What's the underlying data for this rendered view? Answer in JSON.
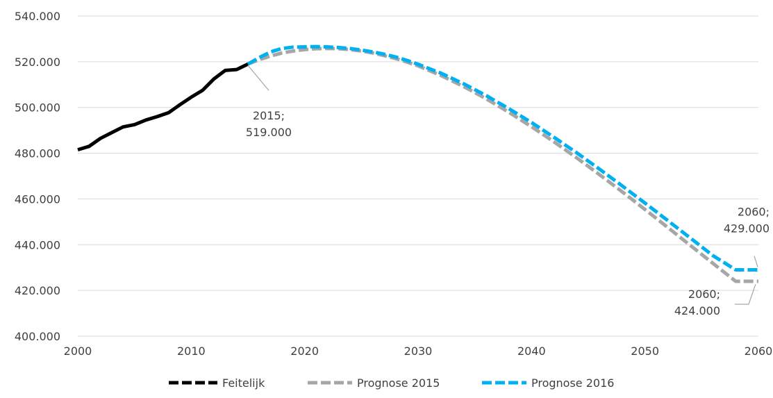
{
  "chart_data": {
    "type": "line",
    "title": "",
    "xlabel": "",
    "ylabel": "",
    "xlim": [
      2000,
      2060
    ],
    "ylim": [
      400000,
      540000
    ],
    "grid": true,
    "legend_placement": "bottom",
    "x_ticks": [
      {
        "value": 2000,
        "label": "2000"
      },
      {
        "value": 2010,
        "label": "2010"
      },
      {
        "value": 2020,
        "label": "2020"
      },
      {
        "value": 2030,
        "label": "2030"
      },
      {
        "value": 2040,
        "label": "2040"
      },
      {
        "value": 2050,
        "label": "2050"
      },
      {
        "value": 2060,
        "label": "2060"
      }
    ],
    "y_ticks": [
      {
        "value": 400000,
        "label": "400.000"
      },
      {
        "value": 420000,
        "label": "420.000"
      },
      {
        "value": 440000,
        "label": "440.000"
      },
      {
        "value": 460000,
        "label": "460.000"
      },
      {
        "value": 480000,
        "label": "480.000"
      },
      {
        "value": 500000,
        "label": "500.000"
      },
      {
        "value": 520000,
        "label": "520.000"
      },
      {
        "value": 540000,
        "label": "540.000"
      }
    ],
    "series": [
      {
        "name": "Feitelijk",
        "color": "#000000",
        "style": "solid",
        "x": [
          2000,
          2001,
          2002,
          2003,
          2004,
          2005,
          2006,
          2007,
          2008,
          2009,
          2010,
          2011,
          2012,
          2013,
          2014,
          2015
        ],
        "y": [
          481500,
          483000,
          486500,
          489000,
          491500,
          492500,
          494500,
          496000,
          497700,
          501200,
          504500,
          507500,
          512500,
          516200,
          516600,
          519000
        ]
      },
      {
        "name": "Prognose 2015",
        "color": "#a6a6a6",
        "style": "dashed",
        "x": [
          2015,
          2016,
          2017,
          2018,
          2019,
          2020,
          2021,
          2022,
          2023,
          2024,
          2025,
          2026,
          2027,
          2028,
          2029,
          2030,
          2032,
          2034,
          2036,
          2038,
          2040,
          2042,
          2044,
          2046,
          2048,
          2050,
          2052,
          2054,
          2056,
          2058,
          2060
        ],
        "y": [
          519000,
          520900,
          522500,
          523800,
          524700,
          525300,
          525700,
          525800,
          525700,
          525300,
          524700,
          523800,
          522700,
          521400,
          519900,
          518200,
          514000,
          509200,
          503800,
          497900,
          491600,
          484900,
          477900,
          470600,
          463100,
          455400,
          447600,
          439700,
          431800,
          424000,
          424000
        ]
      },
      {
        "name": "Prognose 2016",
        "color": "#00b0f0",
        "style": "dashed",
        "x": [
          2015,
          2016,
          2017,
          2018,
          2019,
          2020,
          2021,
          2022,
          2023,
          2024,
          2025,
          2026,
          2027,
          2028,
          2029,
          2030,
          2032,
          2034,
          2036,
          2038,
          2040,
          2042,
          2044,
          2046,
          2048,
          2050,
          2052,
          2054,
          2056,
          2058,
          2060
        ],
        "y": [
          519000,
          521800,
          524300,
          525800,
          526400,
          526500,
          526600,
          526500,
          526200,
          525800,
          525100,
          524300,
          523300,
          522100,
          520600,
          518900,
          515000,
          510400,
          505200,
          499500,
          493400,
          486900,
          480100,
          473000,
          465700,
          458200,
          450600,
          442900,
          435200,
          429000,
          429000
        ]
      }
    ],
    "annotations": [
      {
        "id": "ann-2015",
        "x": 2015,
        "y": 519000,
        "lines": [
          "2015;",
          "519.000"
        ]
      },
      {
        "id": "ann-2060-2016",
        "x": 2060,
        "y": 429000,
        "lines": [
          "2060;",
          "429.000"
        ]
      },
      {
        "id": "ann-2060-2015",
        "x": 2060,
        "y": 424000,
        "lines": [
          "2060;",
          "424.000"
        ]
      }
    ]
  }
}
